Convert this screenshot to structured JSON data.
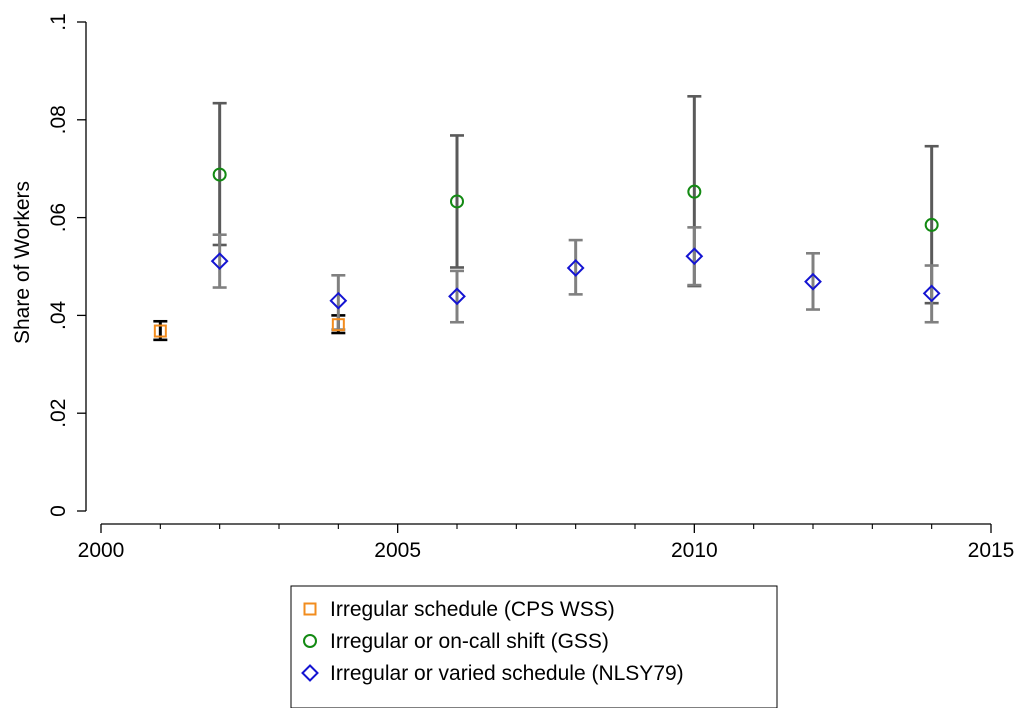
{
  "chart_data": {
    "type": "scatter",
    "title": "",
    "xlabel": "",
    "ylabel": "Share of Workers",
    "xlim": [
      2000,
      2015
    ],
    "ylim": [
      0,
      0.1
    ],
    "x_ticks": [
      2000,
      2005,
      2010,
      2015
    ],
    "x_tick_labels": [
      "2000",
      "2005",
      "2010",
      "2015"
    ],
    "x_minor_ticks": [
      2001,
      2002,
      2003,
      2004,
      2006,
      2007,
      2008,
      2009,
      2011,
      2012,
      2013,
      2014
    ],
    "y_ticks": [
      0,
      0.02,
      0.04,
      0.06,
      0.08,
      0.1
    ],
    "y_tick_labels": [
      "0",
      ".02",
      ".04",
      ".06",
      ".08",
      ".1"
    ],
    "grid": false,
    "legend_position": "bottom",
    "series": [
      {
        "name": "Irregular schedule (CPS WSS)",
        "marker": "square",
        "color": "#f28c1e",
        "error_bar_color": "#000000",
        "points": [
          {
            "x": 2001,
            "y": 0.0368,
            "lo": 0.035,
            "hi": 0.0388
          },
          {
            "x": 2004,
            "y": 0.0381,
            "lo": 0.0364,
            "hi": 0.04
          }
        ]
      },
      {
        "name": "Irregular or on-call shift (GSS)",
        "marker": "circle",
        "color": "#138a13",
        "error_bar_color": "#5a5a5a",
        "points": [
          {
            "x": 2002,
            "y": 0.0688,
            "lo": 0.0544,
            "hi": 0.0834
          },
          {
            "x": 2006,
            "y": 0.0633,
            "lo": 0.0498,
            "hi": 0.0768
          },
          {
            "x": 2010,
            "y": 0.0653,
            "lo": 0.046,
            "hi": 0.0848
          },
          {
            "x": 2014,
            "y": 0.0585,
            "lo": 0.0425,
            "hi": 0.0746
          }
        ]
      },
      {
        "name": "Irregular or varied schedule (NLSY79)",
        "marker": "diamond",
        "color": "#1414d2",
        "error_bar_color": "#808080",
        "points": [
          {
            "x": 2002,
            "y": 0.0511,
            "lo": 0.0457,
            "hi": 0.0565
          },
          {
            "x": 2004,
            "y": 0.043,
            "lo": 0.0371,
            "hi": 0.0482
          },
          {
            "x": 2006,
            "y": 0.0439,
            "lo": 0.0386,
            "hi": 0.0491
          },
          {
            "x": 2008,
            "y": 0.0497,
            "lo": 0.0443,
            "hi": 0.0554
          },
          {
            "x": 2010,
            "y": 0.0521,
            "lo": 0.0462,
            "hi": 0.058
          },
          {
            "x": 2012,
            "y": 0.0469,
            "lo": 0.0412,
            "hi": 0.0527
          },
          {
            "x": 2014,
            "y": 0.0445,
            "lo": 0.0386,
            "hi": 0.0502
          }
        ]
      }
    ]
  }
}
